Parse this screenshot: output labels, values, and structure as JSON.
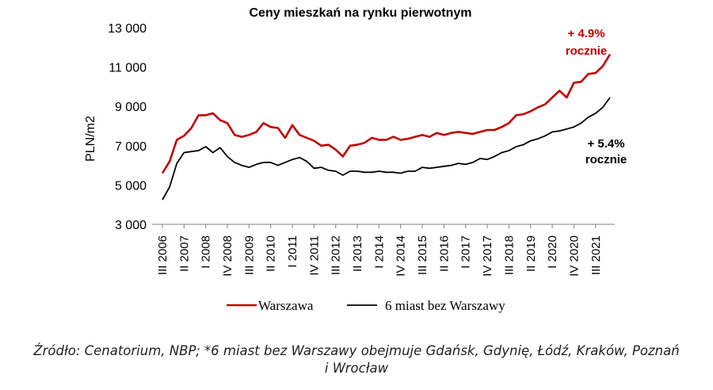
{
  "chart_data": {
    "type": "line",
    "title": "Ceny mieszkań na rynku pierwotnym",
    "ylabel": "PLN/m2",
    "xlabel": "",
    "ylim": [
      3000,
      13000
    ],
    "yticks": [
      "3 000",
      "5 000",
      "7 000",
      "9 000",
      "11 000",
      "13 000"
    ],
    "ytick_values": [
      3000,
      5000,
      7000,
      9000,
      11000,
      13000
    ],
    "grid": false,
    "legend": "bottom",
    "start_quarter": "III 2006",
    "xtick_labels": [
      "III 2006",
      "II 2007",
      "I 2008",
      "IV 2008",
      "III 2009",
      "II 2010",
      "I 2011",
      "IV 2011",
      "III 2012",
      "II 2013",
      "I 2014",
      "IV 2014",
      "III 2015",
      "II 2016",
      "I 2017",
      "IV 2017",
      "III 2018",
      "II 2019",
      "I 2020",
      "IV 2020",
      "III 2021"
    ],
    "series": [
      {
        "name": "Warszawa",
        "color": "#c00000",
        "values": [
          5600,
          6200,
          7300,
          7500,
          7900,
          8550,
          8550,
          8650,
          8300,
          8150,
          7550,
          7450,
          7550,
          7700,
          8150,
          7950,
          7900,
          7400,
          8050,
          7550,
          7400,
          7250,
          7000,
          7050,
          6800,
          6450,
          7000,
          7050,
          7150,
          7400,
          7300,
          7300,
          7450,
          7300,
          7350,
          7450,
          7550,
          7450,
          7650,
          7550,
          7650,
          7700,
          7650,
          7600,
          7700,
          7800,
          7800,
          7950,
          8150,
          8550,
          8600,
          8750,
          8950,
          9100,
          9450,
          9800,
          9450,
          10200,
          10250,
          10650,
          10700,
          11050,
          11650
        ]
      },
      {
        "name": "6 miast bez Warszawy",
        "color": "#000000",
        "values": [
          4250,
          4900,
          6100,
          6650,
          6700,
          6750,
          6950,
          6650,
          6900,
          6450,
          6150,
          6000,
          5900,
          6050,
          6150,
          6150,
          6000,
          6150,
          6300,
          6400,
          6200,
          5850,
          5900,
          5750,
          5700,
          5500,
          5700,
          5700,
          5650,
          5650,
          5700,
          5650,
          5650,
          5600,
          5700,
          5700,
          5900,
          5850,
          5900,
          5950,
          6000,
          6100,
          6050,
          6150,
          6350,
          6300,
          6450,
          6650,
          6750,
          6950,
          7050,
          7250,
          7350,
          7500,
          7700,
          7750,
          7850,
          7950,
          8150,
          8450,
          8650,
          8950,
          9450
        ]
      }
    ],
    "annotations": [
      {
        "line1": "+ 4.9%",
        "line2": "rocznie",
        "color": "#c00000"
      },
      {
        "line1": "+ 5.4%",
        "line2": "rocznie",
        "color": "#000000"
      }
    ]
  },
  "caption": {
    "line1": "Źródło: Cenatorium, NBP; *6 miast bez Warszawy obejmuje Gdańsk, Gdynię, Łódź, Kraków, Poznań",
    "line2": "i Wrocław"
  }
}
